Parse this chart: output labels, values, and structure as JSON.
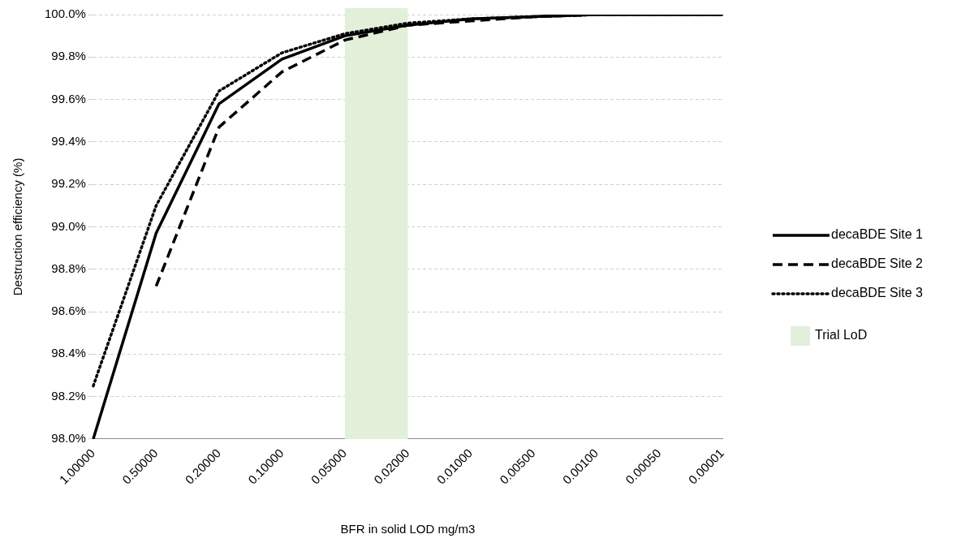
{
  "chart_data": {
    "type": "line",
    "xlabel": "BFR in solid LOD mg/m3",
    "ylabel": "Destruction efficiency (%)",
    "categories": [
      "1.00000",
      "0.50000",
      "0.20000",
      "0.10000",
      "0.05000",
      "0.02000",
      "0.01000",
      "0.00500",
      "0.00100",
      "0.00050",
      "0.00001"
    ],
    "series": [
      {
        "name": "decaBDE Site 1",
        "color": "#000000",
        "line_style": "solid",
        "values": [
          98.0,
          98.97,
          99.58,
          99.79,
          99.9,
          99.95,
          99.98,
          99.99,
          100.0,
          100.0,
          100.0
        ]
      },
      {
        "name": "decaBDE Site 2",
        "color": "#000000",
        "line_style": "dashed",
        "values": [
          null,
          98.72,
          99.47,
          99.73,
          99.88,
          99.95,
          99.97,
          99.99,
          100.0,
          100.0,
          100.0
        ]
      },
      {
        "name": "decaBDE Site 3",
        "color": "#000000",
        "line_style": "dotted",
        "values": [
          98.25,
          99.1,
          99.64,
          99.82,
          99.91,
          99.96,
          99.98,
          99.99,
          100.0,
          100.0,
          100.0
        ]
      }
    ],
    "bands": [
      {
        "axis": "x",
        "from": "0.05000",
        "to": "0.02000",
        "color": "#e2f0d9"
      }
    ],
    "annotations": [
      "Trial LoD"
    ],
    "ylim": [
      98.0,
      100.0
    ],
    "yticks": [
      {
        "value": 98.0,
        "label": "98.0%"
      },
      {
        "value": 98.2,
        "label": "98.2%"
      },
      {
        "value": 98.4,
        "label": "98.4%"
      },
      {
        "value": 98.6,
        "label": "98.6%"
      },
      {
        "value": 98.8,
        "label": "98.8%"
      },
      {
        "value": 99.0,
        "label": "99.0%"
      },
      {
        "value": 99.2,
        "label": "99.2%"
      },
      {
        "value": 99.4,
        "label": "99.4%"
      },
      {
        "value": 99.6,
        "label": "99.6%"
      },
      {
        "value": 99.8,
        "label": "99.8%"
      },
      {
        "value": 100.0,
        "label": "100.0%"
      }
    ],
    "grid": "y",
    "legend": "right",
    "marker": "none"
  }
}
